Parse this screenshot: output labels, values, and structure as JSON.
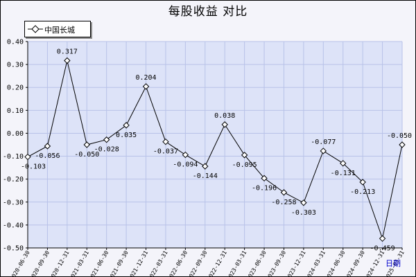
{
  "chart_data": {
    "type": "line",
    "title": "每股收益  对比",
    "xlabel": "日期",
    "ylabel": "",
    "ylim": [
      -0.5,
      0.4
    ],
    "yticks": [
      "0.40",
      "0.30",
      "0.20",
      "0.10",
      "0.00",
      "-0.10",
      "-0.20",
      "-0.30",
      "-0.40",
      "-0.50"
    ],
    "legend_position": "top-left",
    "grid": true,
    "colors": {
      "plot_bg": "#dde3f8",
      "grid": "#b8c2e8",
      "line": "#000000",
      "marker_fill": "#ffffff"
    },
    "categories": [
      "2020-06-30",
      "2020-09-30",
      "2020-12-31",
      "2021-03-31",
      "2021-06-30",
      "2021-09-30",
      "2021-12-31",
      "2022-03-31",
      "2022-06-30",
      "2022-09-30",
      "2022-12-31",
      "2023-03-31",
      "2023-06-30",
      "2023-09-30",
      "2023-12-31",
      "2024-03-31",
      "2024-06-30",
      "2024-09-30",
      "2024-12-31",
      "2025-03-31"
    ],
    "series": [
      {
        "name": "中国长城",
        "values": [
          -0.103,
          -0.056,
          0.317,
          -0.05,
          -0.028,
          0.035,
          0.204,
          -0.037,
          -0.094,
          -0.144,
          0.038,
          -0.095,
          -0.196,
          -0.258,
          -0.303,
          -0.077,
          -0.131,
          -0.213,
          -0.459,
          -0.05
        ],
        "labels": [
          "-0.103",
          "-0.056",
          "0.317",
          "-0.050",
          "-0.028",
          "0.035",
          "0.204",
          "-0.037",
          "-0.094",
          "-0.144",
          "0.038",
          "-0.095",
          "-0.196",
          "-0.258",
          "-0.303",
          "-0.077",
          "-0.131",
          "-0.213",
          "-0.459",
          "-0.050"
        ]
      }
    ]
  }
}
